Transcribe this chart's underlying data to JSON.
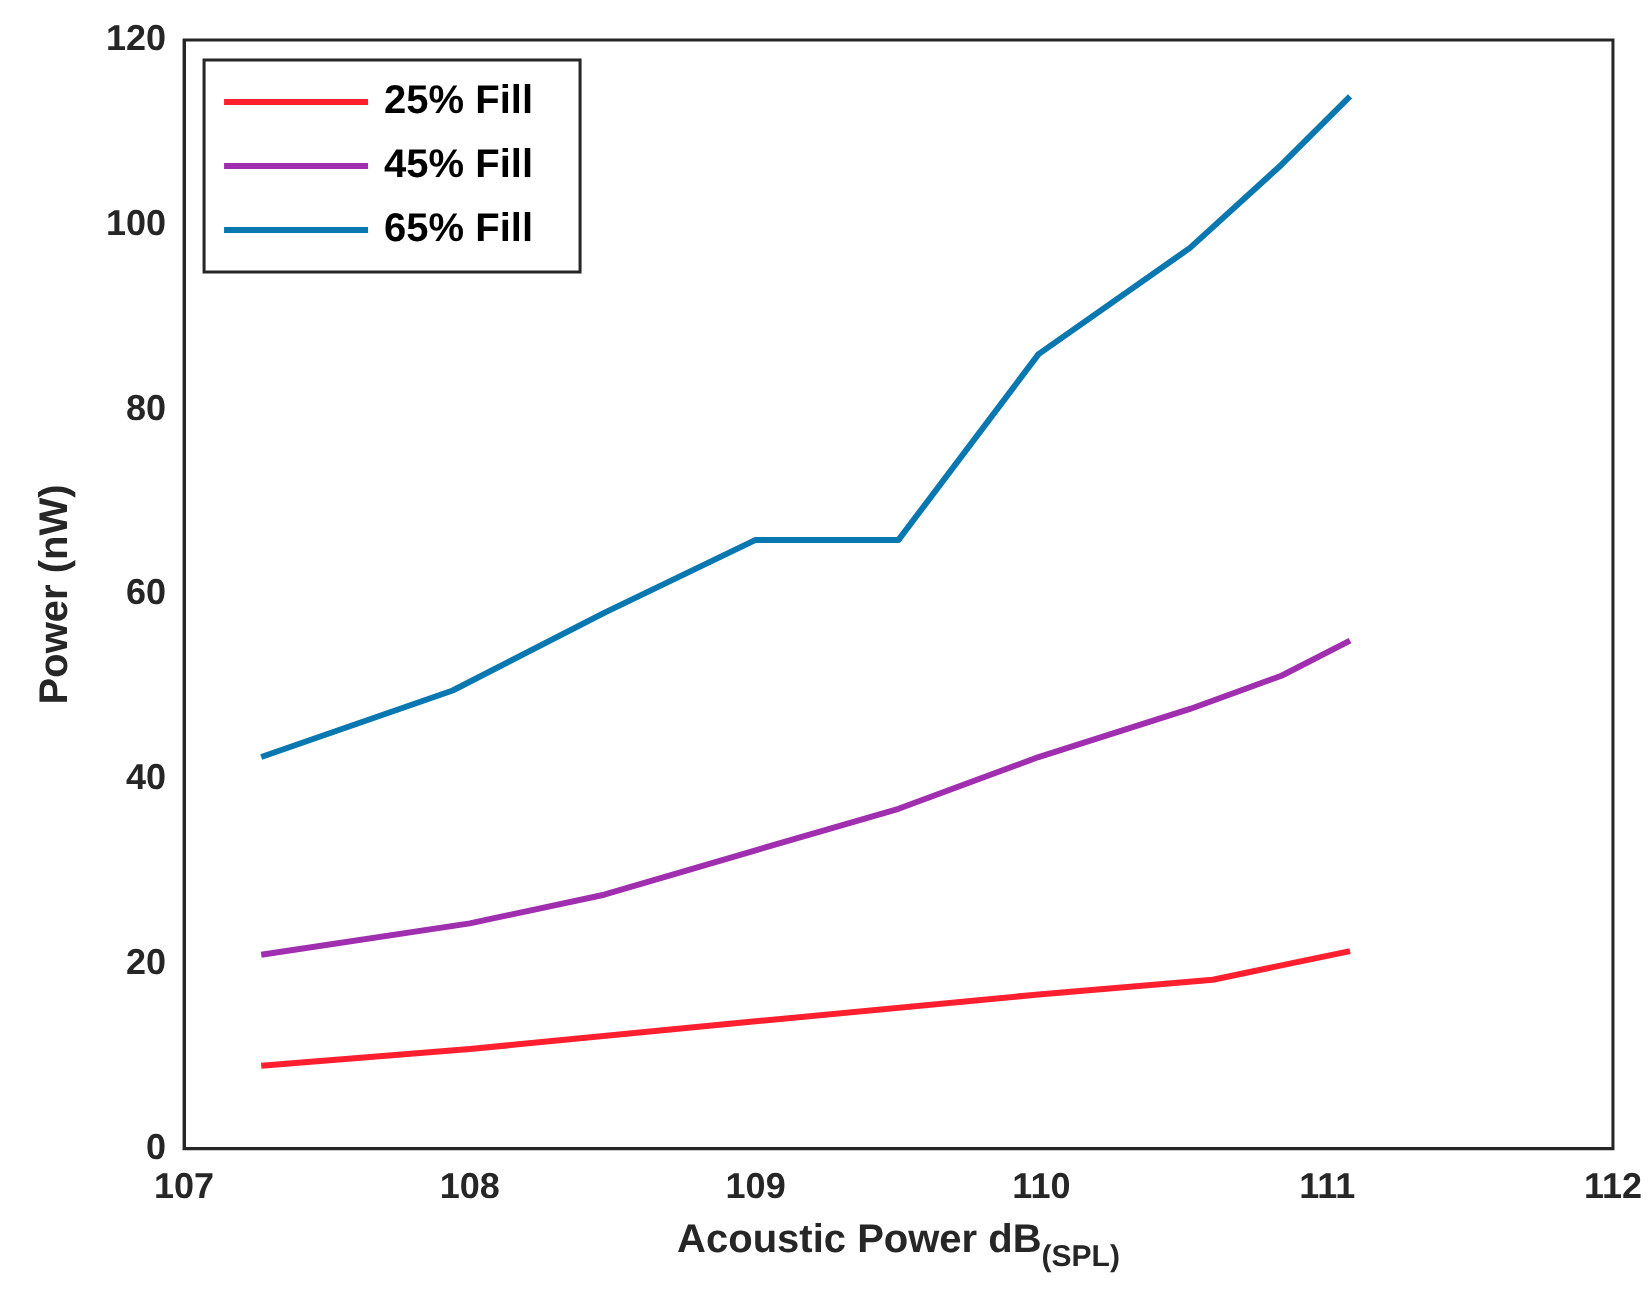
{
  "chart_data": {
    "type": "line",
    "xlabel": "Acoustic Power dB$_{(SPL)}$",
    "ylabel": "Power (nW)",
    "xlim": [
      107,
      112
    ],
    "xticks": [
      107,
      108,
      109,
      110,
      111,
      112
    ],
    "ylim": [
      0,
      120
    ],
    "yticks": [
      0,
      20,
      40,
      60,
      80,
      100,
      120
    ],
    "grid": false,
    "legend": "top left",
    "marker": "none",
    "line_style": "solid",
    "series": [
      {
        "name": "25% Fill",
        "color": "#ff1f2f",
        "x": [
          107.27,
          108.0,
          109.0,
          109.99,
          110.6,
          111.08
        ],
        "values": [
          9,
          10.8,
          13.8,
          16.7,
          18.3,
          21.4
        ]
      },
      {
        "name": "45% Fill",
        "color": "#a02fb0",
        "x": [
          107.27,
          108.0,
          108.47,
          109.0,
          109.5,
          109.99,
          110.52,
          110.84,
          111.08
        ],
        "values": [
          21,
          24.4,
          27.5,
          32.3,
          36.8,
          42.4,
          47.6,
          51.2,
          55
        ]
      },
      {
        "name": "65% Fill",
        "color": "#0a78b0",
        "x": [
          107.27,
          107.94,
          108.47,
          109.0,
          109.5,
          109.99,
          110.52,
          110.84,
          111.08
        ],
        "values": [
          42.4,
          49.6,
          58,
          65.9,
          65.9,
          86,
          97.5,
          106.5,
          113.9
        ]
      }
    ]
  }
}
